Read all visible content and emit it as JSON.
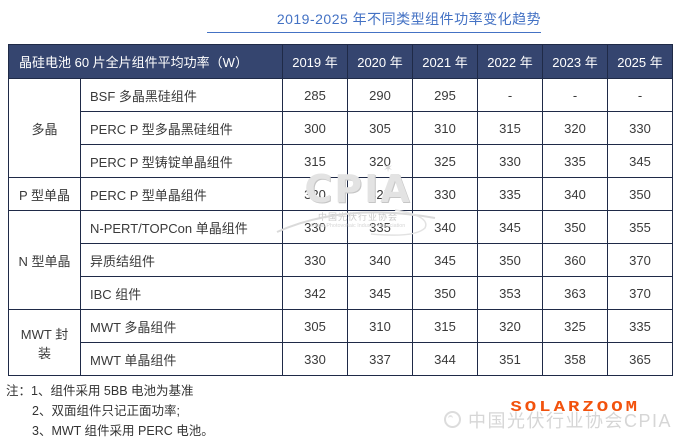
{
  "title": "2019-2025 年不同类型组件功率变化趋势",
  "chart_data": {
    "type": "table",
    "title": "2019-2025 年不同类型组件功率变化趋势",
    "corner_header": "晶硅电池 60 片全片组件平均功率（W）",
    "year_columns": [
      "2019 年",
      "2020 年",
      "2021 年",
      "2022 年",
      "2023 年",
      "2025 年"
    ],
    "groups": [
      {
        "category": "多晶",
        "rows": [
          {
            "type": "BSF 多晶黑硅组件",
            "values": [
              "285",
              "290",
              "295",
              "-",
              "-",
              "-"
            ]
          },
          {
            "type": "PERC P 型多晶黑硅组件",
            "values": [
              "300",
              "305",
              "310",
              "315",
              "320",
              "330"
            ]
          },
          {
            "type": "PERC P 型铸锭单晶组件",
            "values": [
              "315",
              "320",
              "325",
              "330",
              "335",
              "345"
            ]
          }
        ]
      },
      {
        "category": "P 型单晶",
        "rows": [
          {
            "type": "PERC P 型单晶组件",
            "values": [
              "320",
              "325",
              "330",
              "335",
              "340",
              "350"
            ]
          }
        ]
      },
      {
        "category": "N 型单晶",
        "rows": [
          {
            "type": "N-PERT/TOPCon 单晶组件",
            "values": [
              "330",
              "335",
              "340",
              "345",
              "350",
              "355"
            ]
          },
          {
            "type": "异质结组件",
            "values": [
              "330",
              "340",
              "345",
              "350",
              "360",
              "370"
            ]
          },
          {
            "type": "IBC 组件",
            "values": [
              "342",
              "345",
              "350",
              "353",
              "363",
              "370"
            ]
          }
        ]
      },
      {
        "category": "MWT 封装",
        "rows": [
          {
            "type": "MWT 多晶组件",
            "values": [
              "305",
              "310",
              "315",
              "320",
              "325",
              "335"
            ]
          },
          {
            "type": "MWT 单晶组件",
            "values": [
              "330",
              "337",
              "344",
              "351",
              "358",
              "365"
            ]
          }
        ]
      }
    ]
  },
  "notes": [
    "注：1、组件采用 5BB 电池为基准",
    "2、双面组件只记正面功率;",
    "3、MWT 组件采用 PERC 电池。"
  ],
  "watermarks": {
    "center_main": "CPIA",
    "center_star": "✶",
    "center_sub": "中国光伏行业协会",
    "center_sub_en": "China Photovoltaic Industry Association",
    "footer_gray": "中国光伏行业协会CPIA",
    "footer_overlay": "SOLARZOOM"
  },
  "colors": {
    "title_blue": "#4472c4",
    "header_bg": "#35456f",
    "border": "#1f2a47",
    "body_text": "#3a3a3a",
    "watermark_gray": "#d6d6d6",
    "solarzoom_red": "#f2520d"
  }
}
